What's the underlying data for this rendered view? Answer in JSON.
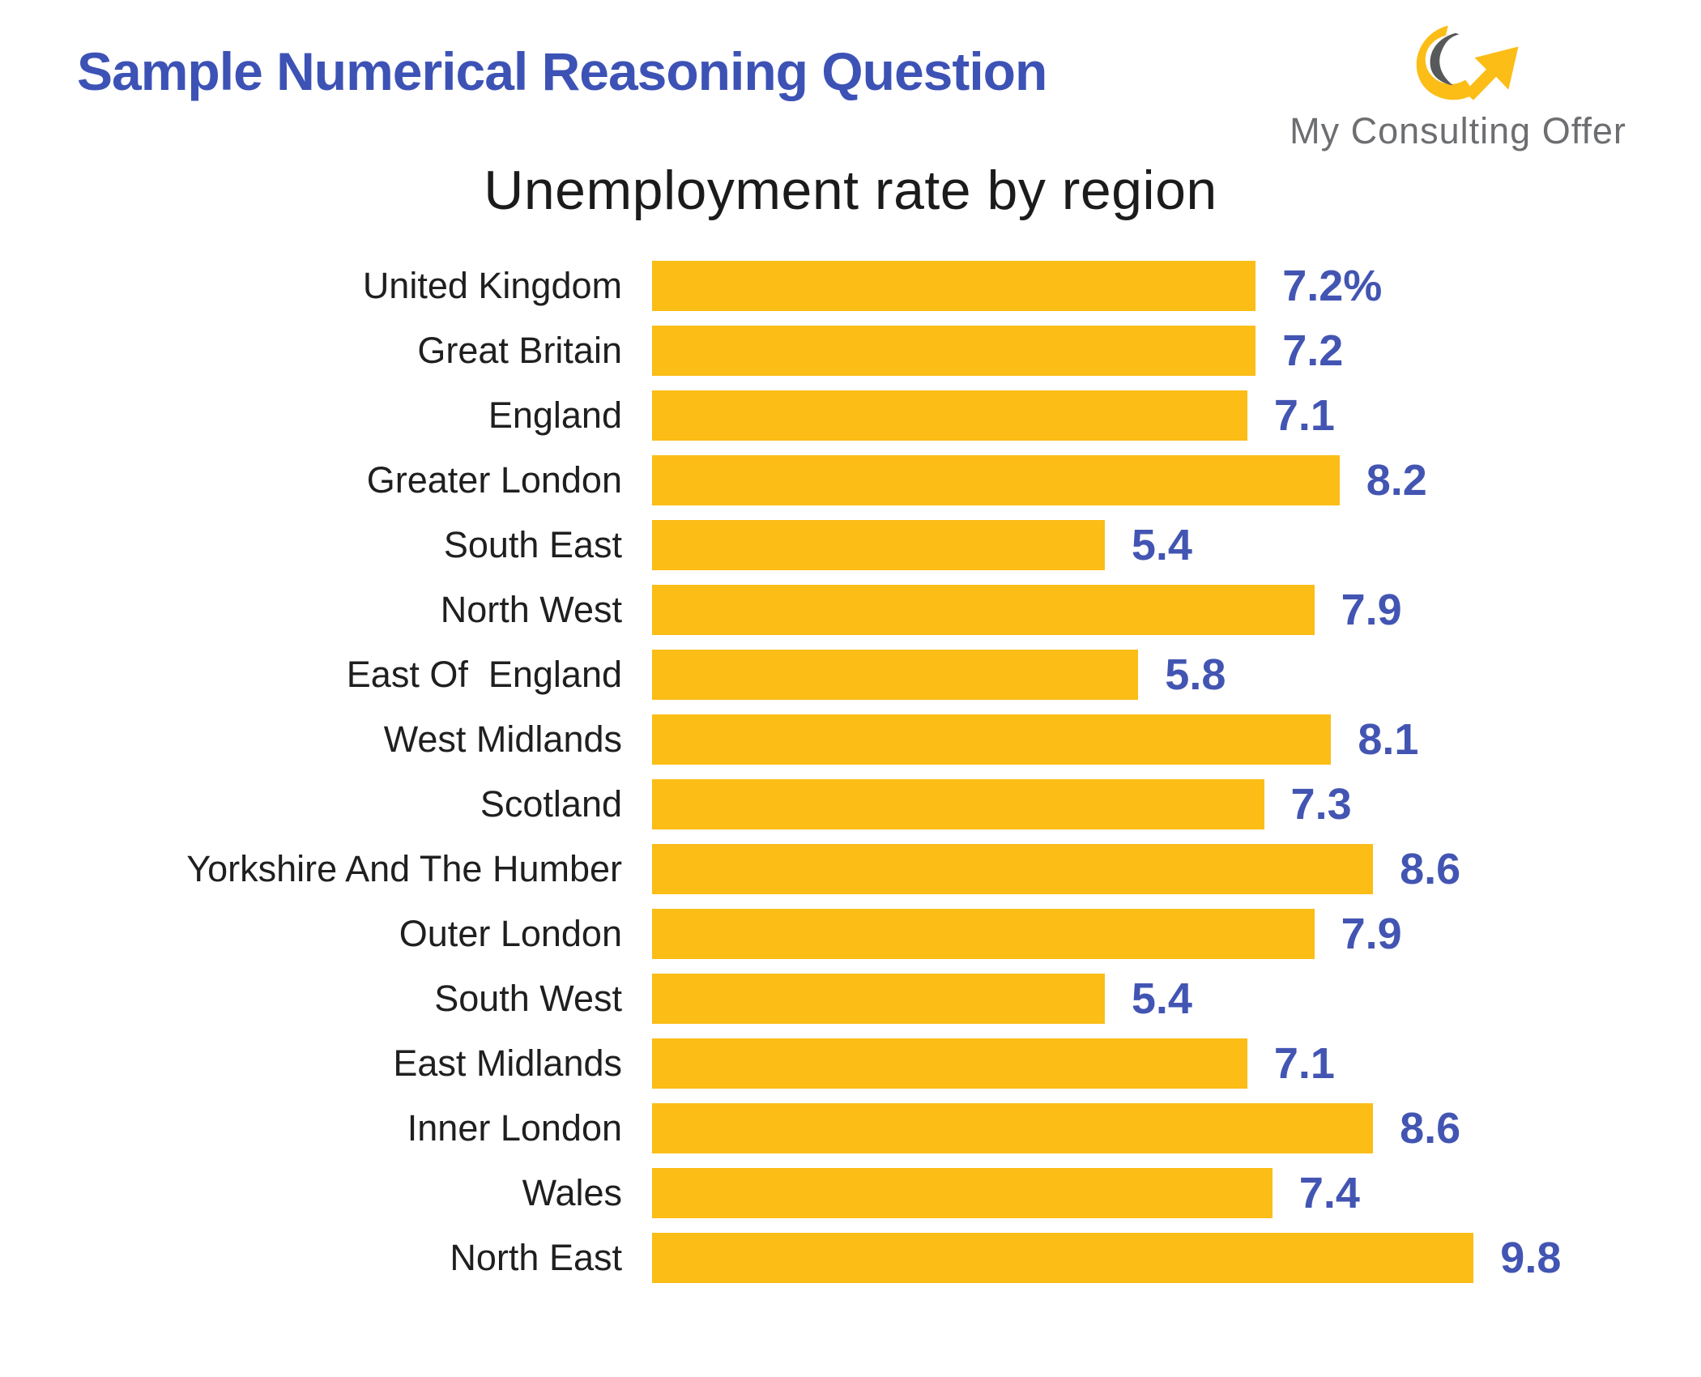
{
  "header": {
    "title": "Sample Numerical Reasoning Question",
    "logo_text": "My Consulting Offer",
    "logo_icon": "curved-arrow-up-right"
  },
  "chart_data": {
    "type": "bar",
    "orientation": "horizontal",
    "title": "Unemployment rate by region",
    "categories": [
      "United Kingdom",
      "Great Britain",
      "England",
      "Greater London",
      "South East",
      "North West",
      "East Of  England",
      "West Midlands",
      "Scotland",
      "Yorkshire And The Humber",
      "Outer London",
      "South West",
      "East Midlands",
      "Inner London",
      "Wales",
      "North East"
    ],
    "values": [
      7.2,
      7.2,
      7.1,
      8.2,
      5.4,
      7.9,
      5.8,
      8.1,
      7.3,
      8.6,
      7.9,
      5.4,
      7.1,
      8.6,
      7.4,
      9.8
    ],
    "value_labels": [
      "7.2%",
      "7.2",
      "7.1",
      "8.2",
      "5.4",
      "7.9",
      "5.8",
      "8.1",
      "7.3",
      "8.6",
      "7.9",
      "5.4",
      "7.1",
      "8.6",
      "7.4",
      "9.8"
    ],
    "unit": "%",
    "xlim": [
      0,
      10.2
    ],
    "grid": false,
    "legend": false,
    "bar_label_position": "right-of-bar",
    "category_label_position": "left-of-bar"
  },
  "colors": {
    "bar": "#FBBD16",
    "heading": "#3D52B5",
    "value_label": "#4355B2",
    "category_label": "#1F1F1F",
    "chart_title": "#1B1B1B",
    "logo_text": "#6D6E71",
    "logo_swoosh": "#58595B",
    "background": "#FFFFFF"
  }
}
